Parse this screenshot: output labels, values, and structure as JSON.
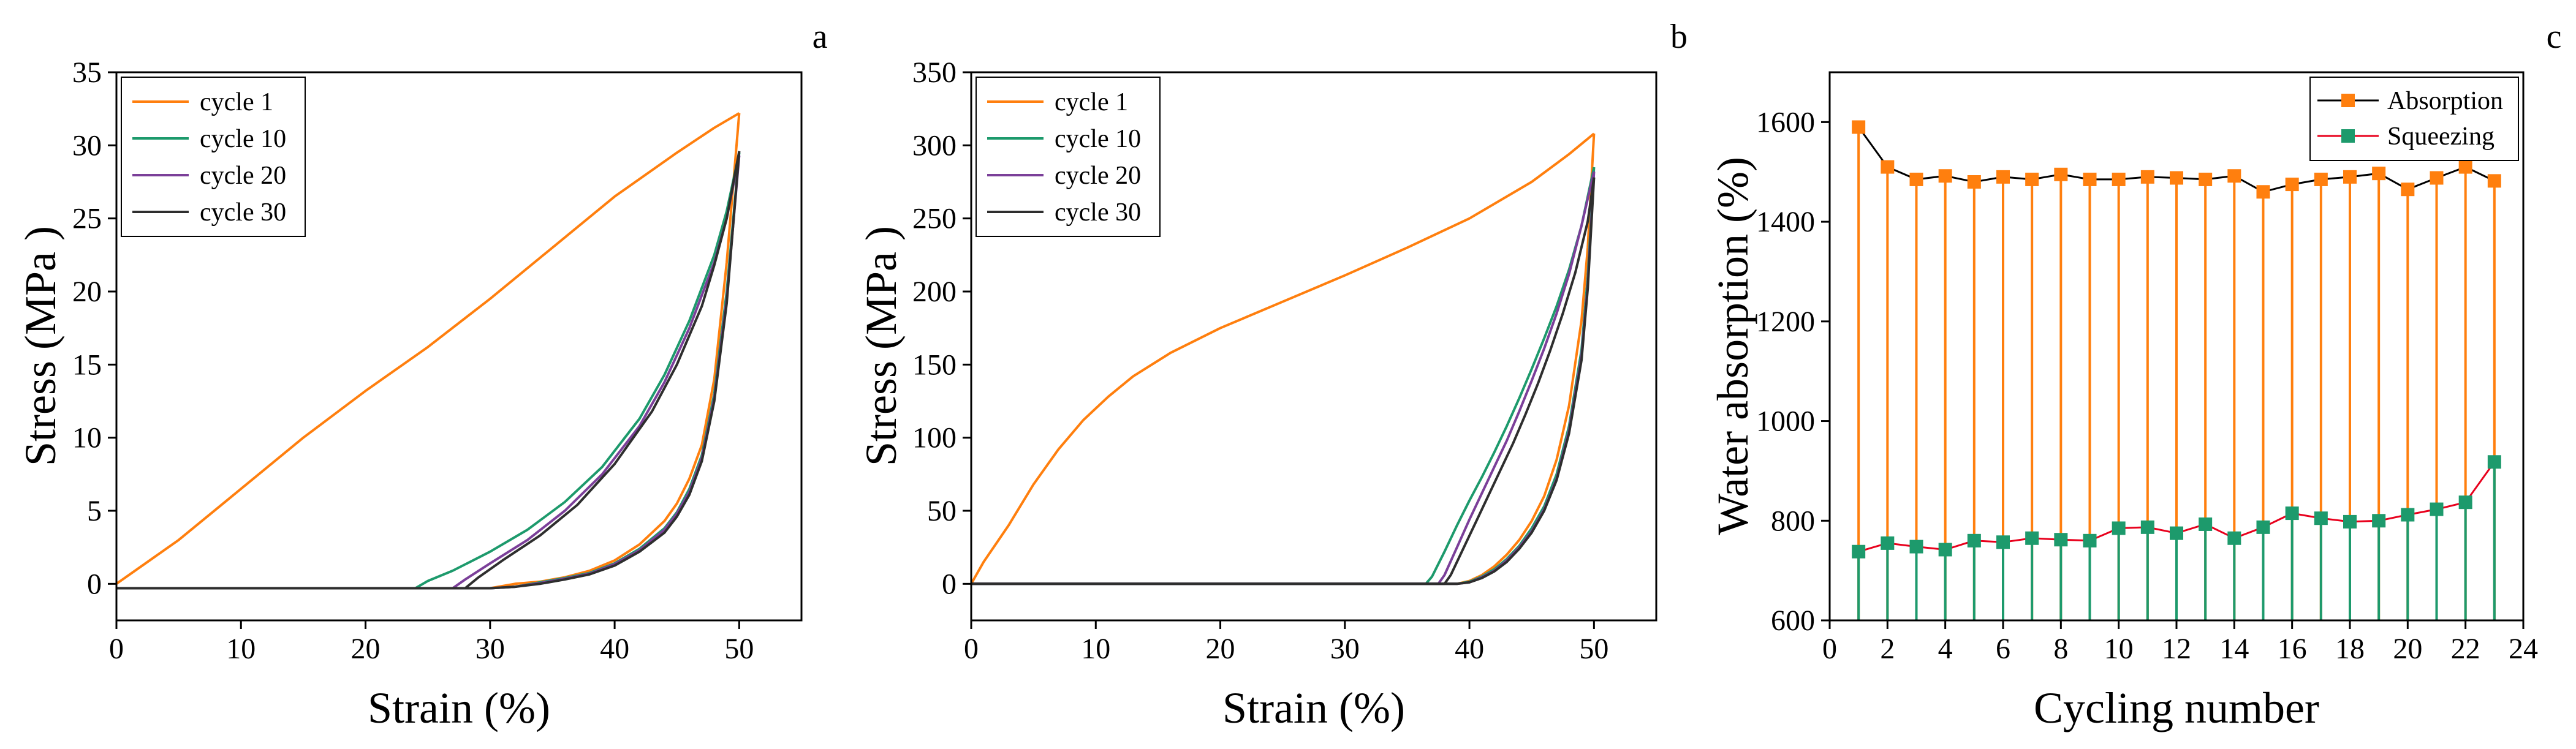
{
  "chart_data": [
    {
      "type": "line",
      "panel_label": "a",
      "xlabel": "Strain (%)",
      "ylabel": "Stress (MPa )",
      "xlim": [
        0,
        55
      ],
      "ylim": [
        -2.5,
        35
      ],
      "xticks": [
        "0",
        "10",
        "20",
        "30",
        "40",
        "50"
      ],
      "yticks": [
        "0",
        "5",
        "10",
        "15",
        "20",
        "25",
        "30",
        "35"
      ],
      "legend_position": "top-left",
      "series": [
        {
          "name": "cycle 1",
          "color": "#FF7F0E",
          "loading_x": [
            0,
            5,
            10,
            15,
            20,
            25,
            30,
            35,
            40,
            45,
            48,
            50
          ],
          "loading_y": [
            0,
            3.0,
            6.5,
            10.0,
            13.2,
            16.2,
            19.5,
            23.0,
            26.5,
            29.5,
            31.2,
            32.2
          ],
          "unloading_x": [
            50,
            49,
            48,
            47,
            46,
            45,
            44,
            42,
            40,
            38,
            36,
            34,
            32,
            30,
            29,
            0
          ],
          "unloading_y": [
            32.2,
            22,
            14,
            9.5,
            7.2,
            5.5,
            4.3,
            2.7,
            1.6,
            0.9,
            0.45,
            0.15,
            0,
            -0.3,
            -0.3,
            -0.3
          ]
        },
        {
          "name": "cycle 10",
          "color": "#1D9A6C",
          "loading_x": [
            0,
            24,
            25,
            27,
            30,
            33,
            36,
            39,
            42,
            44,
            46,
            48,
            49,
            50
          ],
          "loading_y": [
            -0.3,
            -0.3,
            0.2,
            0.9,
            2.2,
            3.7,
            5.6,
            8.0,
            11.3,
            14.3,
            18.0,
            22.5,
            25.5,
            29.5
          ],
          "unloading_x": [
            50,
            49,
            48,
            47,
            46,
            45,
            44,
            42,
            40,
            38,
            36,
            34,
            32,
            30,
            28,
            0
          ],
          "unloading_y": [
            29.5,
            20,
            13,
            8.8,
            6.5,
            4.9,
            3.8,
            2.4,
            1.4,
            0.75,
            0.4,
            0.1,
            -0.2,
            -0.3,
            -0.3,
            -0.3
          ]
        },
        {
          "name": "cycle 20",
          "color": "#7B3F99",
          "loading_x": [
            0,
            27,
            28,
            30,
            33,
            36,
            39,
            42,
            44,
            46,
            48,
            49,
            50
          ],
          "loading_y": [
            -0.3,
            -0.3,
            0.3,
            1.4,
            3.0,
            5.0,
            7.5,
            10.8,
            13.8,
            17.5,
            22.0,
            25.0,
            29.3
          ],
          "unloading_x": [
            50,
            49,
            48,
            47,
            46,
            45,
            44,
            42,
            40,
            38,
            36,
            34,
            32,
            30,
            28,
            0
          ],
          "unloading_y": [
            29.3,
            19.5,
            12.7,
            8.6,
            6.3,
            4.8,
            3.7,
            2.3,
            1.35,
            0.7,
            0.35,
            0.05,
            -0.2,
            -0.3,
            -0.3,
            -0.3
          ]
        },
        {
          "name": "cycle 30",
          "color": "#2E2E2E",
          "loading_x": [
            0,
            28,
            29,
            31,
            34,
            37,
            40,
            43,
            45,
            47,
            48,
            49,
            50
          ],
          "loading_y": [
            -0.3,
            -0.3,
            0.4,
            1.6,
            3.3,
            5.4,
            8.2,
            11.8,
            15.0,
            19.0,
            21.8,
            25.0,
            29.6
          ],
          "unloading_x": [
            50,
            49,
            48,
            47,
            46,
            45,
            44,
            42,
            40,
            38,
            36,
            34,
            32,
            30,
            28,
            0
          ],
          "unloading_y": [
            29.6,
            19.2,
            12.5,
            8.4,
            6.1,
            4.6,
            3.5,
            2.2,
            1.25,
            0.65,
            0.3,
            0.0,
            -0.2,
            -0.3,
            -0.3,
            -0.3
          ]
        }
      ]
    },
    {
      "type": "line",
      "panel_label": "b",
      "xlabel": "Strain (%)",
      "ylabel": "Stress (MPa )",
      "xlim": [
        0,
        55
      ],
      "ylim": [
        -25,
        350
      ],
      "xticks": [
        "0",
        "10",
        "20",
        "30",
        "40",
        "50"
      ],
      "yticks": [
        "0",
        "50",
        "100",
        "150",
        "200",
        "250",
        "300",
        "350"
      ],
      "legend_position": "top-left",
      "series": [
        {
          "name": "cycle 1",
          "color": "#FF7F0E",
          "loading_x": [
            0,
            1,
            3,
            5,
            7,
            9,
            11,
            13,
            16,
            20,
            25,
            30,
            35,
            40,
            45,
            48,
            50
          ],
          "loading_y": [
            0,
            15,
            40,
            68,
            92,
            112,
            128,
            142,
            158,
            175,
            193,
            211,
            230,
            250,
            275,
            294,
            308
          ],
          "unloading_x": [
            50,
            49.5,
            49,
            48,
            47,
            46,
            45,
            44,
            43,
            42,
            41,
            40,
            39,
            38,
            0
          ],
          "unloading_y": [
            308,
            230,
            180,
            122,
            85,
            60,
            43,
            30,
            20,
            12,
            6,
            2,
            0,
            0,
            0
          ]
        },
        {
          "name": "cycle 10",
          "color": "#1D9A6C",
          "loading_x": [
            0,
            36.5,
            37,
            38,
            39,
            40,
            41,
            42,
            43,
            44,
            45,
            46,
            47,
            48,
            49,
            50
          ],
          "loading_y": [
            0,
            0,
            5,
            22,
            40,
            57,
            73,
            90,
            108,
            127,
            147,
            168,
            190,
            215,
            245,
            285
          ],
          "unloading_x": [
            50,
            49.5,
            49,
            48,
            47,
            46,
            45,
            44,
            43,
            42,
            41,
            40,
            39,
            38.5,
            0
          ],
          "unloading_y": [
            285,
            210,
            160,
            108,
            75,
            53,
            38,
            26,
            17,
            10,
            5,
            1.5,
            0,
            0,
            0
          ]
        },
        {
          "name": "cycle 20",
          "color": "#7B3F99",
          "loading_x": [
            0,
            37.5,
            38,
            39,
            40,
            41,
            42,
            43,
            44,
            45,
            46,
            47,
            48,
            49,
            50
          ],
          "loading_y": [
            0,
            0,
            6,
            25,
            44,
            62,
            80,
            98,
            118,
            139,
            161,
            185,
            212,
            245,
            282
          ],
          "unloading_x": [
            50,
            49.5,
            49,
            48,
            47,
            46,
            45,
            44,
            43,
            42,
            41,
            40,
            39,
            0
          ],
          "unloading_y": [
            282,
            205,
            156,
            105,
            72,
            51,
            36,
            25,
            16,
            9,
            4.5,
            1,
            0,
            0
          ]
        },
        {
          "name": "cycle 30",
          "color": "#2E2E2E",
          "loading_x": [
            0,
            38,
            38.5,
            39.5,
            40.5,
            41.5,
            42.5,
            43.5,
            44.5,
            45.5,
            46.5,
            47.5,
            48.5,
            49.5,
            50
          ],
          "loading_y": [
            0,
            0,
            6,
            24,
            42,
            60,
            78,
            96,
            116,
            137,
            160,
            185,
            213,
            248,
            278
          ],
          "unloading_x": [
            50,
            49.5,
            49,
            48,
            47,
            46,
            45,
            44,
            43,
            42,
            41,
            40,
            39,
            0
          ],
          "unloading_y": [
            278,
            202,
            153,
            103,
            71,
            50,
            35,
            24,
            15,
            8.5,
            4,
            1,
            0,
            0
          ]
        }
      ]
    },
    {
      "type": "line",
      "panel_label": "c",
      "xlabel": "Cycling number",
      "ylabel": "Water absorption (%)",
      "xlim": [
        0,
        24
      ],
      "ylim": [
        600,
        1700
      ],
      "xticks": [
        "0",
        "2",
        "4",
        "6",
        "8",
        "10",
        "12",
        "14",
        "16",
        "18",
        "20",
        "22",
        "24"
      ],
      "yticks": [
        "600",
        "800",
        "1000",
        "1200",
        "1400",
        "1600"
      ],
      "legend_position": "top-right",
      "x": [
        1,
        2,
        3,
        4,
        5,
        6,
        7,
        8,
        9,
        10,
        11,
        12,
        13,
        14,
        15,
        16,
        17,
        18,
        19,
        20,
        21,
        22,
        23
      ],
      "series": [
        {
          "name": "Absorption",
          "line_color": "#000000",
          "marker_color": "#FF7F0E",
          "drop_line_color": "#FF7F0E",
          "values": [
            1590,
            1510,
            1485,
            1492,
            1480,
            1490,
            1485,
            1495,
            1485,
            1485,
            1490,
            1488,
            1485,
            1492,
            1460,
            1475,
            1485,
            1490,
            1497,
            1465,
            1488,
            1510,
            1482
          ]
        },
        {
          "name": "Squeezing",
          "line_color": "#E8001C",
          "marker_color": "#1D9A6C",
          "drop_line_color": "#1D9A6C",
          "values": [
            738,
            755,
            748,
            742,
            760,
            757,
            765,
            762,
            760,
            785,
            787,
            775,
            793,
            765,
            787,
            815,
            805,
            798,
            800,
            812,
            823,
            837,
            918
          ]
        }
      ]
    }
  ]
}
